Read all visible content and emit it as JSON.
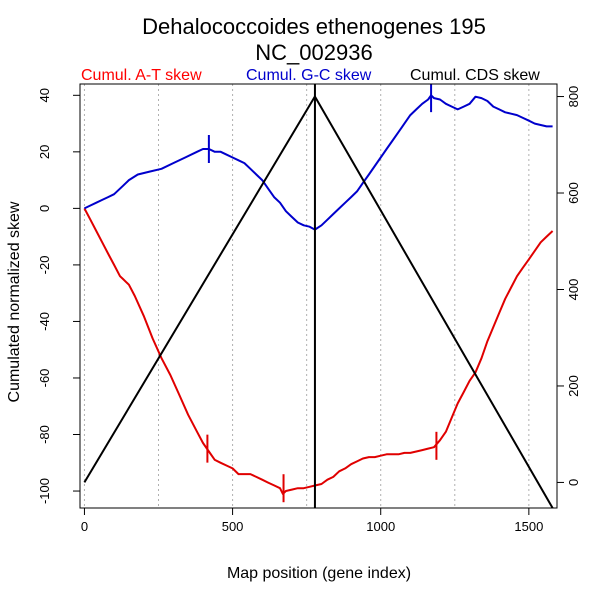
{
  "chart_data": {
    "type": "line",
    "title_line1": "Dehalococcoides ethenogenes 195",
    "title_line2": "NC_002936",
    "xlabel": "Map position (gene index)",
    "ylabel": "Cumulated normalized skew",
    "xlim": [
      -15,
      1595
    ],
    "ylim_left": [
      -106,
      44
    ],
    "ylim_right": [
      -53,
      826
    ],
    "x_ticks": [
      0,
      500,
      1000,
      1500
    ],
    "y_ticks_left": [
      -100,
      -80,
      -60,
      -40,
      -20,
      0,
      20,
      40
    ],
    "y_ticks_right": [
      0,
      200,
      400,
      600,
      800
    ],
    "grid_x": [
      0,
      250,
      500,
      750,
      1000,
      1250,
      1500
    ],
    "vertical_line_x": 778,
    "legend": [
      {
        "label": "Cumul. A-T skew",
        "color": "#ff0000"
      },
      {
        "label": "Cumul. G-C skew",
        "color": "#0000cc"
      },
      {
        "label": "Cumul. CDS skew",
        "color": "#000000"
      }
    ],
    "series": [
      {
        "name": "Cumul. A-T skew",
        "axis": "left",
        "color": "#e00000",
        "x": [
          0,
          20,
          40,
          60,
          80,
          100,
          120,
          130,
          150,
          170,
          200,
          230,
          260,
          290,
          320,
          350,
          380,
          400,
          420,
          440,
          460,
          480,
          500,
          520,
          540,
          560,
          580,
          600,
          620,
          640,
          660,
          670,
          680,
          700,
          720,
          740,
          760,
          780,
          800,
          820,
          840,
          860,
          880,
          900,
          920,
          940,
          960,
          980,
          1000,
          1020,
          1040,
          1060,
          1080,
          1100,
          1120,
          1140,
          1160,
          1180,
          1200,
          1220,
          1240,
          1260,
          1280,
          1300,
          1320,
          1340,
          1360,
          1380,
          1400,
          1420,
          1440,
          1460,
          1480,
          1500,
          1520,
          1540,
          1560,
          1580
        ],
        "y": [
          0,
          -4,
          -8,
          -12,
          -16,
          -20,
          -24,
          -25,
          -27,
          -31,
          -38,
          -46,
          -53,
          -59,
          -66,
          -73,
          -79,
          -83,
          -86,
          -89,
          -90,
          -91,
          -92,
          -94,
          -94,
          -94,
          -95,
          -96,
          -97,
          -98,
          -99,
          -101,
          -100,
          -99.5,
          -99,
          -99,
          -98.5,
          -98,
          -97.5,
          -96,
          -95,
          -93,
          -92,
          -90.5,
          -89.5,
          -88.5,
          -88,
          -88,
          -87.5,
          -87,
          -87,
          -87,
          -86.5,
          -86.5,
          -86,
          -85.5,
          -85,
          -84.5,
          -82,
          -79,
          -74,
          -69,
          -65,
          -61,
          -58,
          -53,
          -47,
          -42,
          -37,
          -32,
          -28,
          -24,
          -21,
          -18,
          -15,
          -12,
          -10,
          -8
        ]
      },
      {
        "name": "Cumul. G-C skew",
        "axis": "left",
        "color": "#0000cc",
        "x": [
          0,
          20,
          40,
          60,
          80,
          100,
          130,
          150,
          180,
          220,
          260,
          300,
          340,
          380,
          400,
          420,
          440,
          460,
          480,
          500,
          520,
          540,
          560,
          580,
          600,
          620,
          640,
          660,
          680,
          700,
          720,
          740,
          760,
          778,
          800,
          820,
          840,
          860,
          880,
          900,
          920,
          940,
          960,
          980,
          1000,
          1020,
          1040,
          1060,
          1080,
          1100,
          1120,
          1140,
          1160,
          1170,
          1180,
          1200,
          1220,
          1240,
          1260,
          1280,
          1300,
          1320,
          1340,
          1360,
          1380,
          1400,
          1420,
          1440,
          1460,
          1480,
          1500,
          1520,
          1540,
          1560,
          1580
        ],
        "y": [
          0,
          1,
          2,
          3,
          4,
          5,
          8,
          10,
          12,
          13,
          14,
          16,
          18,
          20,
          21,
          21,
          20,
          20,
          19,
          18,
          17,
          16,
          14,
          12,
          10,
          7,
          4,
          2,
          -1,
          -3,
          -5,
          -6,
          -6.5,
          -7.5,
          -6,
          -4,
          -2,
          0,
          2,
          4,
          6,
          9,
          12,
          15,
          18,
          21,
          24,
          27,
          30,
          33,
          35,
          37,
          38.5,
          40,
          39,
          38.5,
          37,
          36,
          35,
          36,
          37,
          39.5,
          39,
          38,
          36,
          35,
          34,
          33.5,
          33,
          32,
          31,
          30,
          29.5,
          29,
          29
        ]
      },
      {
        "name": "Cumul. CDS skew",
        "axis": "right",
        "color": "#000000",
        "x": [
          0,
          778,
          1580
        ],
        "y": [
          0,
          800,
          -53
        ]
      }
    ],
    "markers": [
      {
        "series": "Cumul. A-T skew",
        "x": 415,
        "y": -85
      },
      {
        "series": "Cumul. A-T skew",
        "x": 672,
        "y": -99
      },
      {
        "series": "Cumul. A-T skew",
        "x": 1188,
        "y": -84
      },
      {
        "series": "Cumul. G-C skew",
        "x": 420,
        "y": 21
      },
      {
        "series": "Cumul. G-C skew",
        "x": 1170,
        "y": 39
      }
    ]
  }
}
